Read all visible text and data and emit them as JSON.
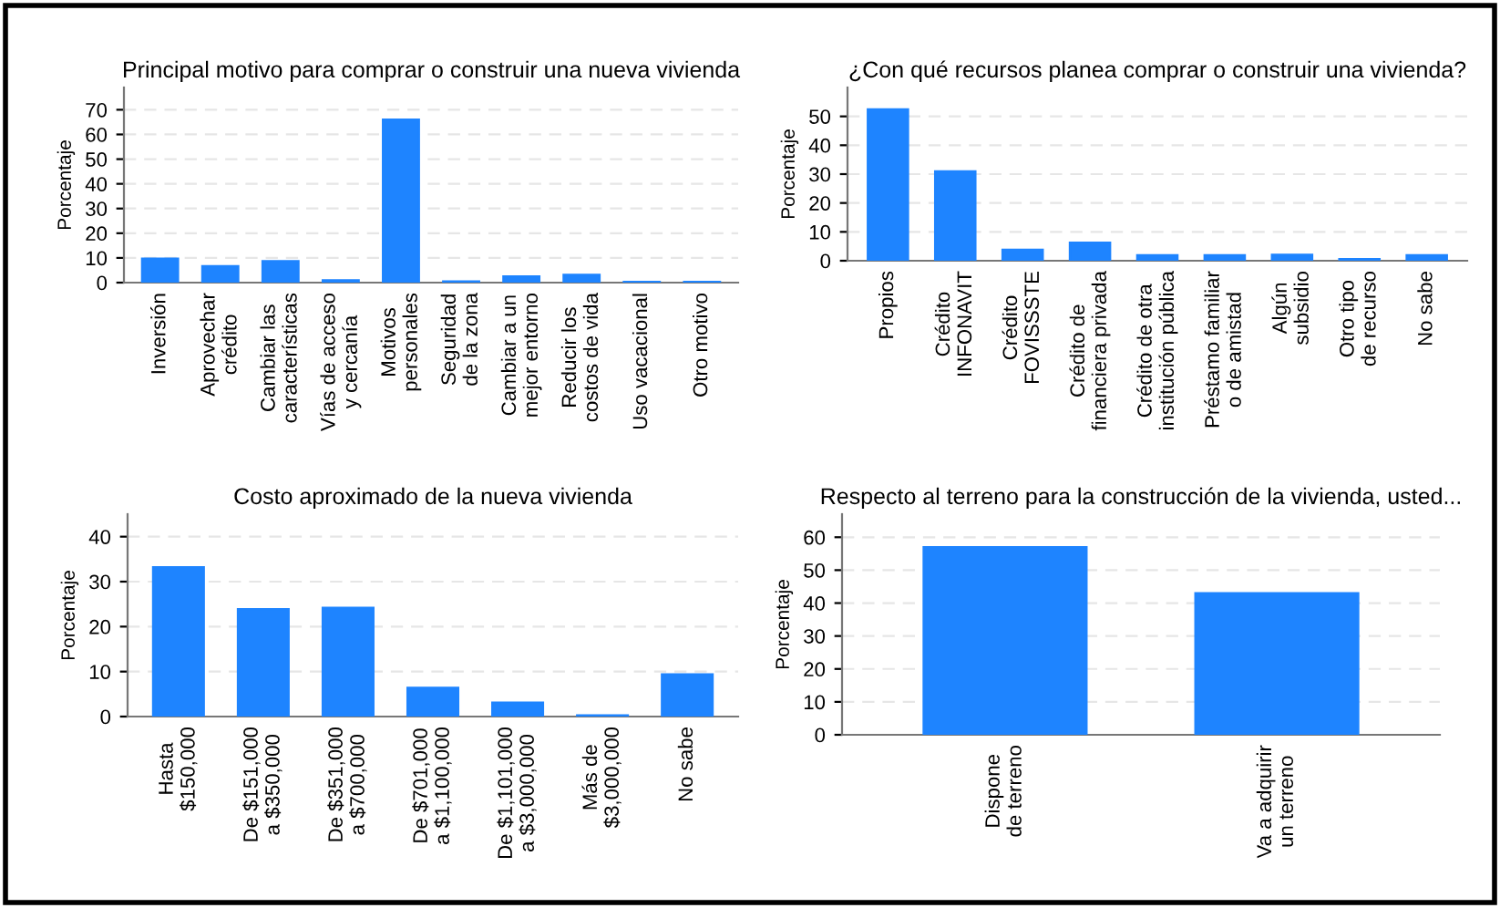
{
  "chart_data": [
    {
      "type": "bar",
      "title": "Principal motivo para comprar o construir una nueva vivienda",
      "ylabel": "Porcentaje",
      "categories": [
        "Inversión",
        "Aprovechar\ncrédito",
        "Cambiar las\ncaracterísticas",
        "Vías de acceso\ny cercanía",
        "Motivos\npersonales",
        "Seguridad\nde la zona",
        "Cambiar a un\nmejor entorno",
        "Reducir los\ncostos de vida",
        "Uso vacacional",
        "Otro motivo"
      ],
      "values": [
        9.7,
        6.7,
        8.7,
        1.0,
        66,
        0.5,
        2.5,
        3.2,
        0.3,
        0.3
      ],
      "color": "#1e84ff",
      "ylim": [
        0,
        79
      ],
      "yticks": [
        0,
        10,
        20,
        30,
        40,
        50,
        60,
        70
      ],
      "grid": "y"
    },
    {
      "type": "bar",
      "title": "¿Con qué recursos planea comprar o construir una vivienda?",
      "ylabel": "Porcentaje",
      "categories": [
        "Propios",
        "Crédito\nINFONAVIT",
        "Crédito\nFOVISSSTE",
        "Crédito de\nfinanciera privada",
        "Crédito de otra\ninstitución pública",
        "Préstamo familiar\no de amistad",
        "Algún\nsubsidio",
        "Otro tipo\nde recurso",
        "No sabe"
      ],
      "values": [
        52.5,
        31,
        3.8,
        6.3,
        1.9,
        1.9,
        2.1,
        0.6,
        1.9
      ],
      "color": "#1e84ff",
      "ylim": [
        0,
        60
      ],
      "yticks": [
        0,
        10,
        20,
        30,
        40,
        50
      ],
      "grid": "y"
    },
    {
      "type": "bar",
      "title": "Costo aproximado de la nueva vivienda",
      "ylabel": "Porcentaje",
      "categories": [
        "Hasta\n$150,000",
        "De $151,000\na $350,000",
        "De $351,000\na $700,000",
        "De $701,000\na $1,100,000",
        "De $1,101,000\na $3,000,000",
        "Más de\n$3,000,000",
        "No sabe"
      ],
      "values": [
        33.2,
        23.9,
        24.2,
        6.4,
        3.1,
        0.3,
        9.4
      ],
      "color": "#1e84ff",
      "ylim": [
        0,
        45
      ],
      "yticks": [
        0,
        10,
        20,
        30,
        40
      ],
      "grid": "y"
    },
    {
      "type": "bar",
      "title": "Respecto al terreno para la construcción de la vivienda, usted...",
      "ylabel": "Porcentaje",
      "categories": [
        "Dispone\nde terreno",
        "Va a adquirir\nun terreno"
      ],
      "values": [
        57,
        43
      ],
      "color": "#1e84ff",
      "ylim": [
        0,
        67
      ],
      "yticks": [
        0,
        10,
        20,
        30,
        40,
        50,
        60
      ],
      "grid": "y"
    }
  ]
}
